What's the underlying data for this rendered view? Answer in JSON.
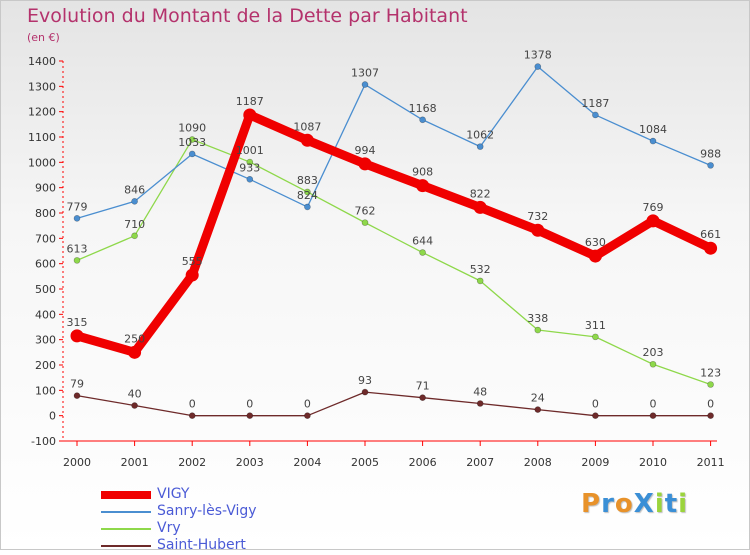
{
  "title": "Evolution du Montant de la Dette par Habitant",
  "unit": "(en €)",
  "logo": {
    "text": "ProXiti",
    "letters": [
      {
        "ch": "P",
        "color": "#e8922a"
      },
      {
        "ch": "r",
        "color": "#3a8fd6"
      },
      {
        "ch": "o",
        "color": "#e8922a"
      },
      {
        "ch": "X",
        "color": "#3a8fd6"
      },
      {
        "ch": "i",
        "color": "#9bd43c"
      },
      {
        "ch": "t",
        "color": "#3a8fd6"
      },
      {
        "ch": "i",
        "color": "#9bd43c"
      }
    ]
  },
  "chart_data": {
    "type": "line",
    "title": "Evolution du Montant de la Dette par Habitant",
    "ylabel": "(en €)",
    "x": [
      "2000",
      "2001",
      "2002",
      "2003",
      "2004",
      "2005",
      "2006",
      "2007",
      "2008",
      "2009",
      "2010",
      "2011"
    ],
    "ylim": [
      -100,
      1400
    ],
    "yticks": [
      -100,
      0,
      100,
      200,
      300,
      400,
      500,
      600,
      700,
      800,
      900,
      1000,
      1100,
      1200,
      1300,
      1400
    ],
    "grid": false,
    "legend_position": "bottom-left",
    "series": [
      {
        "name": "VIGY",
        "color": "#f00000",
        "values": [
          315,
          250,
          555,
          1187,
          1087,
          994,
          908,
          822,
          732,
          630,
          769,
          661
        ]
      },
      {
        "name": "Sanry-lès-Vigy",
        "color": "#4a8ed0",
        "values": [
          779,
          846,
          1033,
          933,
          824,
          1307,
          1168,
          1062,
          1378,
          1187,
          1084,
          988
        ]
      },
      {
        "name": "Vry",
        "color": "#8ed84a",
        "values": [
          613,
          710,
          1090,
          1001,
          883,
          762,
          644,
          532,
          338,
          311,
          203,
          123
        ]
      },
      {
        "name": "Saint-Hubert",
        "color": "#6e2a2a",
        "values": [
          79,
          40,
          0,
          0,
          0,
          93,
          71,
          48,
          24,
          0,
          0,
          0
        ]
      }
    ],
    "data_labels": [
      [
        "315",
        "250",
        "555",
        "1187",
        "1087",
        "994",
        "908",
        "822",
        "732",
        "630",
        "769",
        "661"
      ],
      [
        "779",
        "846",
        "1033",
        "933",
        "824",
        "1307",
        "1168",
        "1062",
        "1378",
        "1187",
        "1084",
        "988"
      ],
      [
        "613",
        "710",
        "1090",
        "1001",
        "883",
        "762",
        "644",
        "532",
        "338",
        "311",
        "203",
        "123"
      ],
      [
        "79",
        "40",
        "0",
        "0",
        "0",
        "93",
        "71",
        "48",
        "24",
        "0",
        "0",
        "0"
      ]
    ]
  }
}
